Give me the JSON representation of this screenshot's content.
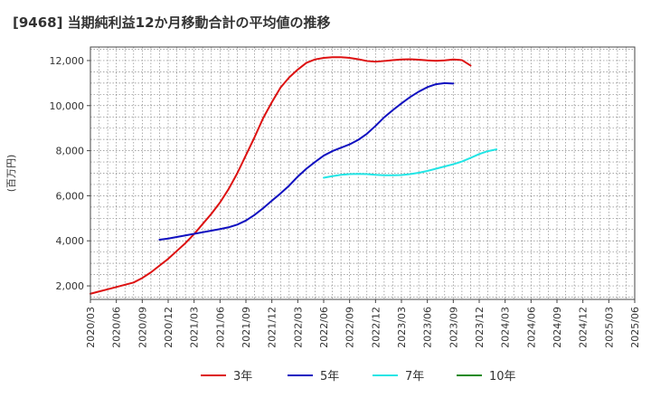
{
  "chart_data": {
    "type": "line",
    "title": "[9468]  当期純利益12か月移動合計の平均値の推移",
    "ylabel": "(百万円)",
    "xlabel": "",
    "ylim": [
      1400,
      12600
    ],
    "yticks": [
      2000,
      4000,
      6000,
      8000,
      10000,
      12000
    ],
    "ytick_labels": [
      "2,000",
      "4,000",
      "6,000",
      "8,000",
      "10,000",
      "12,000"
    ],
    "x_labels": [
      "2020/03",
      "2020/06",
      "2020/09",
      "2020/12",
      "2021/03",
      "2021/06",
      "2021/09",
      "2021/12",
      "2022/03",
      "2022/06",
      "2022/09",
      "2022/12",
      "2023/03",
      "2023/06",
      "2023/09",
      "2023/12",
      "2024/03",
      "2024/06",
      "2024/09",
      "2024/12",
      "2025/03",
      "2025/06"
    ],
    "grid": true,
    "legend_position": "bottom",
    "series": [
      {
        "name": "3年",
        "color": "#dd1111",
        "start_index": 0,
        "values": [
          1650,
          1750,
          1850,
          1950,
          2050,
          2150,
          2350,
          2600,
          2900,
          3200,
          3550,
          3900,
          4300,
          4750,
          5200,
          5700,
          6300,
          7000,
          7800,
          8600,
          9450,
          10150,
          10800,
          11250,
          11600,
          11900,
          12050,
          12120,
          12150,
          12150,
          12120,
          12060,
          11980,
          11950,
          11980,
          12020,
          12050,
          12060,
          12040,
          12010,
          11990,
          12010,
          12050,
          12020,
          11780
        ]
      },
      {
        "name": "5年",
        "color": "#1010c0",
        "start_index": 8,
        "values": [
          4050,
          4100,
          4170,
          4240,
          4310,
          4380,
          4450,
          4520,
          4600,
          4720,
          4900,
          5150,
          5450,
          5780,
          6100,
          6450,
          6850,
          7200,
          7500,
          7780,
          7980,
          8130,
          8280,
          8480,
          8750,
          9100,
          9480,
          9800,
          10100,
          10380,
          10620,
          10820,
          10950,
          11000,
          10980
        ]
      },
      {
        "name": "7年",
        "color": "#22e5e5",
        "start_index": 27,
        "values": [
          6800,
          6870,
          6930,
          6960,
          6970,
          6960,
          6930,
          6910,
          6910,
          6920,
          6960,
          7020,
          7100,
          7200,
          7300,
          7400,
          7520,
          7680,
          7850,
          7980,
          8060
        ]
      },
      {
        "name": "10年",
        "color": "#1a8a1a",
        "start_index": 44,
        "values": []
      }
    ]
  }
}
